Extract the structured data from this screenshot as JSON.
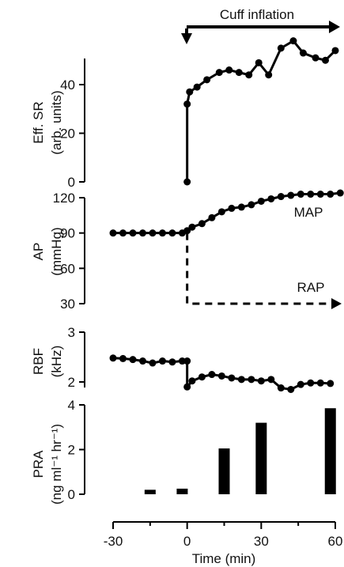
{
  "chart_data": [
    {
      "type": "line",
      "ylabel": "Eff. SR",
      "yunit": "(arb. units)",
      "ylim": [
        0,
        50
      ],
      "yticks": [
        "0",
        "20",
        "40"
      ],
      "series": [
        {
          "x": [
            0,
            0,
            1,
            4,
            8,
            13,
            17,
            21,
            25,
            29,
            33,
            38,
            43,
            47,
            52,
            56,
            60
          ],
          "y": [
            0,
            32,
            37,
            39,
            42,
            45,
            46,
            45,
            44,
            49,
            44,
            55,
            58,
            53,
            51,
            50,
            54
          ]
        }
      ],
      "annotation": "Cuff inflation"
    },
    {
      "type": "line",
      "ylabel": "AP",
      "yunit": "(mmHg)",
      "ylim": [
        30,
        120
      ],
      "yticks": [
        "30",
        "60",
        "90",
        "120"
      ],
      "series": [
        {
          "name": "MAP",
          "x": [
            -30,
            -26,
            -22,
            -18,
            -14,
            -10,
            -6,
            -2,
            0,
            2,
            6,
            10,
            14,
            18,
            22,
            26,
            30,
            34,
            38,
            42,
            46,
            50,
            54,
            58,
            62
          ],
          "y": [
            90,
            90,
            90,
            90,
            90,
            90,
            90,
            90,
            92,
            95,
            98,
            103,
            108,
            111,
            112,
            114,
            117,
            119,
            121,
            122,
            123,
            123,
            123,
            123,
            124
          ],
          "style": "solid"
        },
        {
          "name": "RAP",
          "x": [
            0,
            0,
            60
          ],
          "y": [
            90,
            30,
            30
          ],
          "style": "dashed"
        }
      ]
    },
    {
      "type": "line",
      "ylabel": "RBF",
      "yunit": "(kHz)",
      "ylim": [
        1.9,
        3
      ],
      "yticks": [
        "2",
        "3"
      ],
      "series": [
        {
          "x": [
            -30,
            -26,
            -22,
            -18,
            -14,
            -10,
            -6,
            -2,
            0,
            0,
            2,
            6,
            10,
            14,
            18,
            22,
            26,
            30,
            34,
            38,
            42,
            46,
            50,
            54,
            58
          ],
          "y": [
            2.48,
            2.47,
            2.45,
            2.42,
            2.38,
            2.42,
            2.4,
            2.42,
            2.42,
            1.9,
            2.02,
            2.1,
            2.15,
            2.12,
            2.08,
            2.05,
            2.05,
            2.02,
            2.05,
            1.88,
            1.85,
            1.95,
            1.98,
            1.98,
            1.97
          ]
        }
      ]
    },
    {
      "type": "bar",
      "ylabel": "PRA",
      "yunit": "(ng ml⁻¹ hr⁻¹)",
      "ylim": [
        0,
        4
      ],
      "yticks": [
        "0",
        "2",
        "4"
      ],
      "x": [
        -15,
        -2,
        15,
        30,
        58
      ],
      "values": [
        0.2,
        0.25,
        2.05,
        3.2,
        3.85
      ],
      "xlabel": "Time (min)",
      "xlim": [
        -30,
        60
      ],
      "xticks": [
        "-30",
        "0",
        "30",
        "60"
      ]
    }
  ]
}
